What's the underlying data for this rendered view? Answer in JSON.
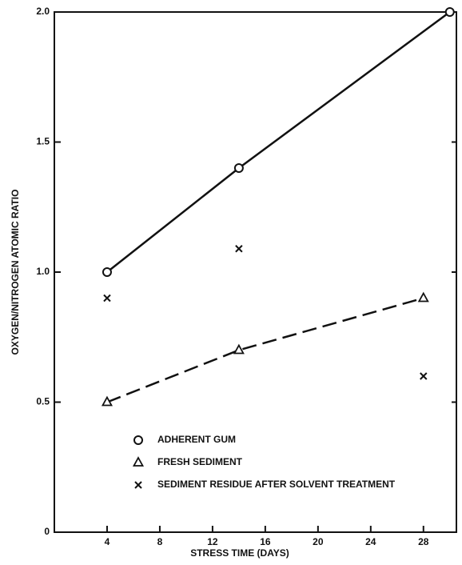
{
  "chart_data": {
    "type": "line",
    "xlabel": "STRESS TIME (DAYS)",
    "ylabel": "OXYGEN/NITROGEN ATOMIC RATIO",
    "xlim": [
      0,
      30.5
    ],
    "xticks": [
      4,
      8,
      12,
      16,
      20,
      24,
      28
    ],
    "ylim": [
      0,
      2
    ],
    "yticks": [
      0,
      0.5,
      {
        "value": 1,
        "label": "1.0"
      },
      1.5,
      {
        "value": 2,
        "label": "2.0"
      }
    ],
    "series": [
      {
        "name": "ADHERENT GUM",
        "color": "#111111",
        "marker": "circle",
        "line": "solid",
        "x": [
          4,
          14,
          30
        ],
        "values": [
          1.0,
          1.4,
          2.0
        ]
      },
      {
        "name": "FRESH SEDIMENT",
        "color": "#111111",
        "marker": "triangle",
        "line": "dashed",
        "x": [
          4,
          14,
          28
        ],
        "values": [
          0.5,
          0.7,
          0.9
        ]
      },
      {
        "name": "SEDIMENT RESIDUE AFTER SOLVENT TREATMENT",
        "color": "#111111",
        "marker": "x",
        "x": [
          4,
          14,
          28
        ],
        "values": [
          0.9,
          1.09,
          0.6
        ]
      }
    ]
  }
}
